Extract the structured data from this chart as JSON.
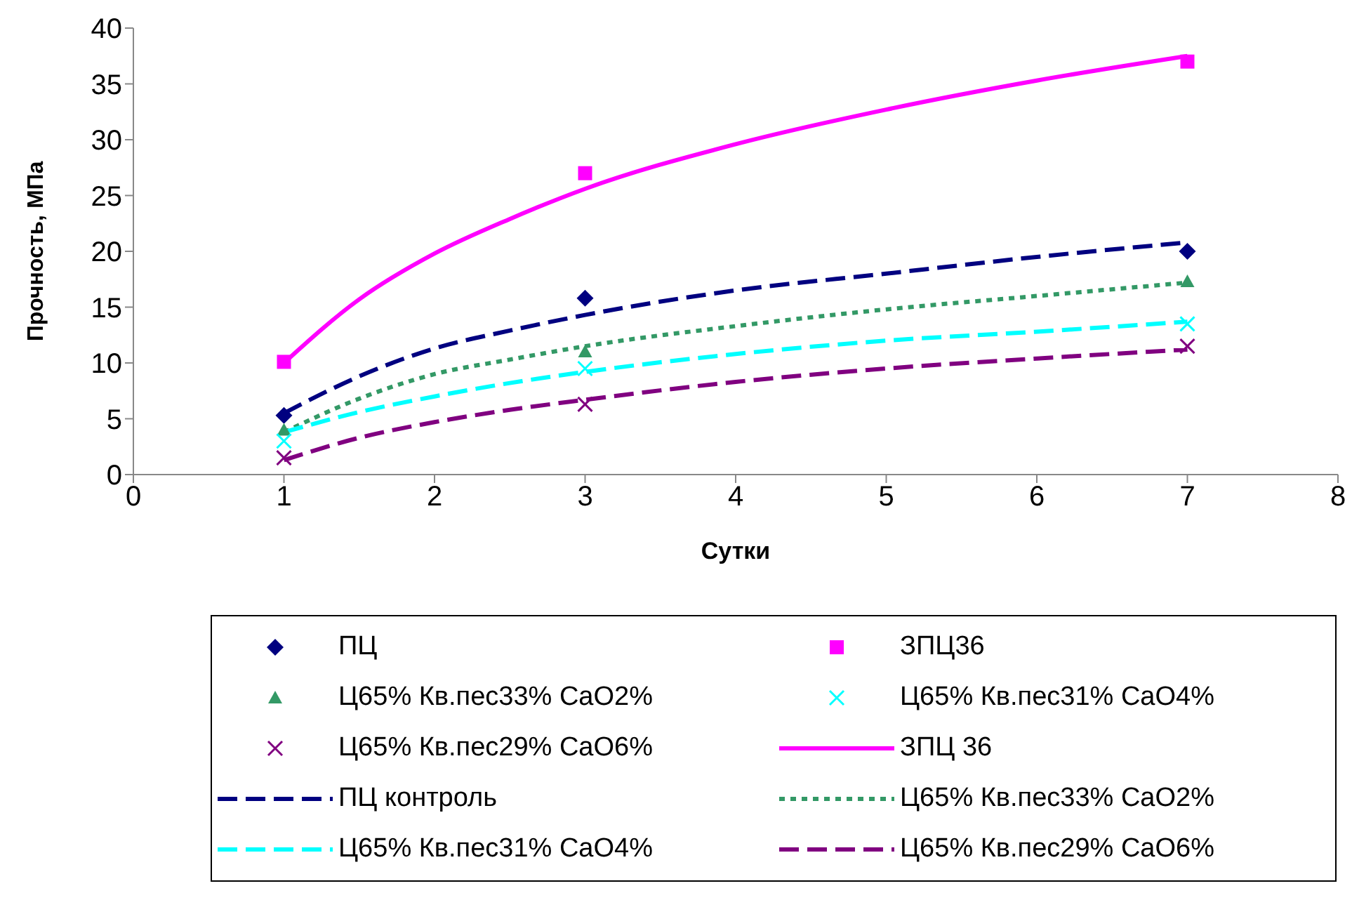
{
  "chart_data": {
    "type": "scatter",
    "xlabel": "Сутки",
    "ylabel": "Прочность, МПа",
    "xlim": [
      0,
      8
    ],
    "xticks": [
      0,
      1,
      2,
      3,
      4,
      5,
      6,
      7,
      8
    ],
    "ylim": [
      0,
      40
    ],
    "yticks": [
      0,
      5,
      10,
      15,
      20,
      25,
      30,
      35,
      40
    ],
    "legend": "bottom",
    "series": [
      {
        "name": "ПЦ",
        "marker": "diamond",
        "color": "#000080",
        "x": [
          1,
          3,
          7
        ],
        "values": [
          5.3,
          15.8,
          20
        ]
      },
      {
        "name": "ЗПЦ36",
        "marker": "square",
        "color": "#ff00ff",
        "x": [
          1,
          3,
          7
        ],
        "values": [
          10.1,
          27,
          37
        ]
      },
      {
        "name": "Ц65% Кв.пес33% CaO2%",
        "marker": "triangle",
        "color": "#339966",
        "x": [
          1,
          3,
          7
        ],
        "values": [
          4,
          11,
          17.3
        ]
      },
      {
        "name": "Ц65% Кв.пес31% CaO4%",
        "marker": "cross",
        "color": "#00ffff",
        "x": [
          1,
          3,
          7
        ],
        "values": [
          3,
          9.5,
          13.5
        ]
      },
      {
        "name": "Ц65% Кв.пес29% CaO6%",
        "marker": "cross",
        "color": "#800080",
        "x": [
          1,
          3,
          7
        ],
        "values": [
          1.5,
          6.3,
          11.5
        ]
      },
      {
        "name": "ЗПЦ 36",
        "type": "line",
        "line_style": "solid",
        "color": "#ff00ff",
        "x": [
          1,
          1.5,
          2,
          2.5,
          3,
          4,
          5,
          6,
          7
        ],
        "values": [
          10,
          15.7,
          19.8,
          22.9,
          25.6,
          29.6,
          32.7,
          35.3,
          37.5
        ]
      },
      {
        "name": "ПЦ контроль",
        "type": "line",
        "line_style": "dashed",
        "color": "#000080",
        "x": [
          1,
          1.5,
          2,
          2.5,
          3,
          4,
          5,
          6,
          7
        ],
        "values": [
          5.5,
          8.8,
          11.3,
          12.9,
          14.3,
          16.5,
          18,
          19.5,
          20.8
        ]
      },
      {
        "name": "Ц65% Кв.пес33% CaO2%",
        "type": "line",
        "line_style": "dotted",
        "color": "#339966",
        "x": [
          1,
          1.5,
          2,
          2.5,
          3,
          4,
          5,
          6,
          7
        ],
        "values": [
          3.8,
          6.8,
          9,
          10.3,
          11.5,
          13.3,
          14.8,
          16,
          17.2
        ]
      },
      {
        "name": "Ц65% Кв.пес31% CaO4%",
        "type": "line",
        "line_style": "dashed",
        "color": "#00ffff",
        "x": [
          1,
          1.5,
          2,
          2.5,
          3,
          4,
          5,
          6,
          7
        ],
        "values": [
          3.8,
          5.6,
          7,
          8.2,
          9.2,
          10.8,
          12,
          12.8,
          13.7
        ]
      },
      {
        "name": "Ц65% Кв.пес29% CaO6%",
        "type": "line",
        "line_style": "dashed",
        "color": "#800080",
        "x": [
          1,
          1.5,
          2,
          2.5,
          3,
          4,
          5,
          6,
          7
        ],
        "values": [
          1.3,
          3.3,
          4.7,
          5.8,
          6.7,
          8.3,
          9.5,
          10.4,
          11.2
        ]
      }
    ]
  }
}
